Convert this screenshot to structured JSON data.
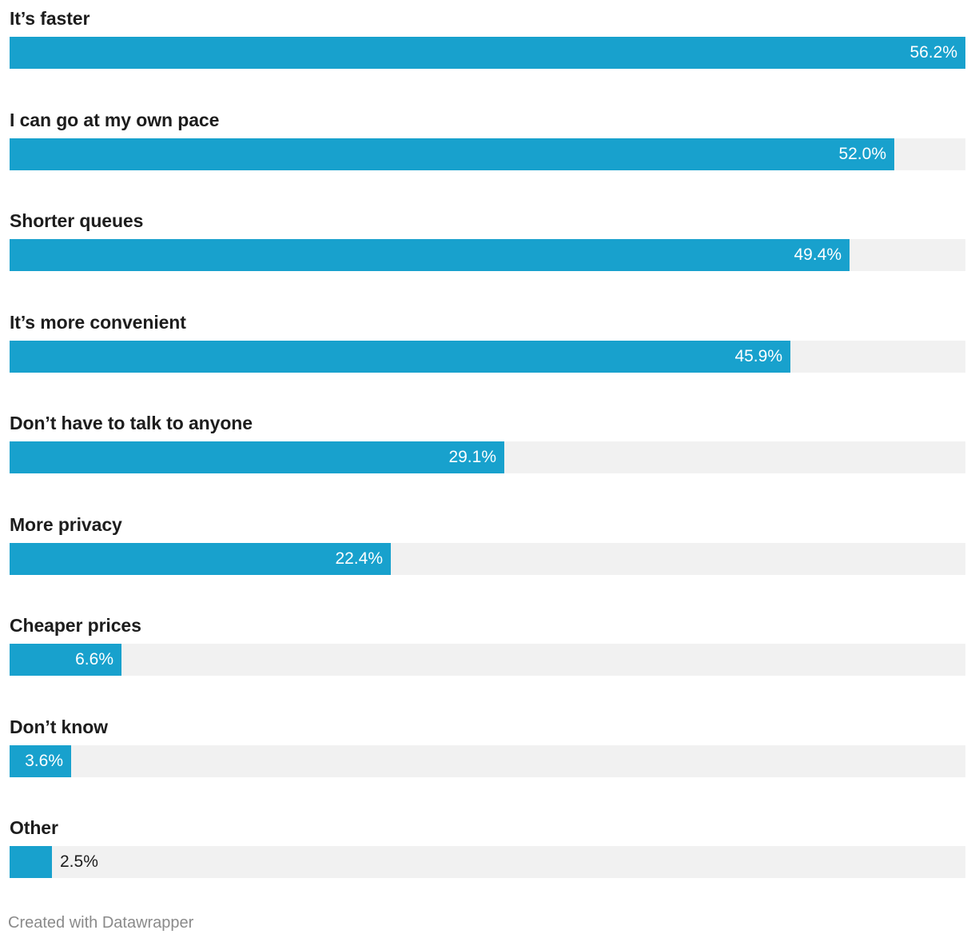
{
  "colors": {
    "bar": "#18a1cd",
    "track": "#f1f1f1",
    "label": "#1d1d1d",
    "footer": "#8a8a8a"
  },
  "chart_data": {
    "type": "bar",
    "orientation": "horizontal",
    "value_suffix": "%",
    "xlim": [
      0,
      56.2
    ],
    "grid": false,
    "categories": [
      "It’s faster",
      "I can go at my own pace",
      "Shorter queues",
      "It’s more convenient",
      "Don’t have to talk to anyone",
      "More privacy",
      "Cheaper prices",
      "Don’t know",
      "Other"
    ],
    "values": [
      56.2,
      52.0,
      49.4,
      45.9,
      29.1,
      22.4,
      6.6,
      3.6,
      2.5
    ],
    "value_labels": [
      "56.2%",
      "52.0%",
      "49.4%",
      "45.9%",
      "29.1%",
      "22.4%",
      "6.6%",
      "3.6%",
      "2.5%"
    ]
  },
  "footer": {
    "credit": "Created with Datawrapper"
  }
}
